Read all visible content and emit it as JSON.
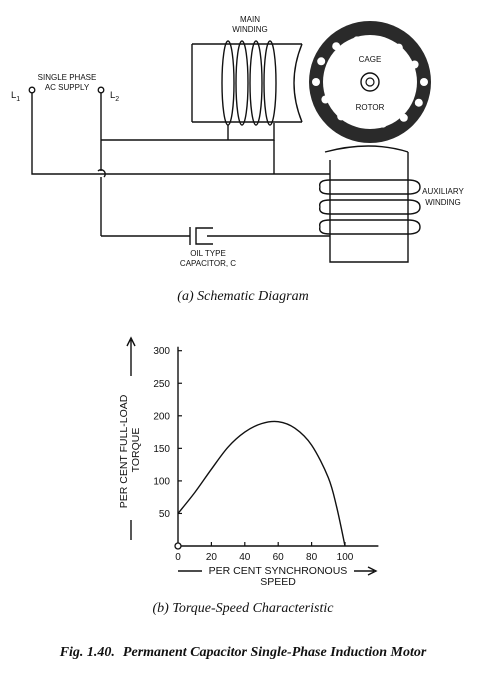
{
  "schematic": {
    "main_winding_line1": "MAIN",
    "main_winding_line2": "WINDING",
    "cage_label": "CAGE",
    "rotor_label": "ROTOR",
    "supply_line1": "SINGLE PHASE",
    "supply_line2": "AC SUPPLY",
    "l1_main": "L",
    "l1_sub": "1",
    "l2_main": "L",
    "l2_sub": "2",
    "aux_line1": "AUXILIARY",
    "aux_line2": "WINDING",
    "cap_line1": "OIL TYPE",
    "cap_line2": "CAPACITOR, C",
    "caption": "(a) Schematic Diagram"
  },
  "chart_data": {
    "type": "line",
    "title": "",
    "xlabel": "PER CENT SYNCHRONOUS SPEED",
    "ylabel": "PER CENT FULL-LOAD TORQUE",
    "xlim": [
      0,
      120
    ],
    "ylim": [
      0,
      300
    ],
    "x_ticks": [
      20,
      40,
      60,
      80,
      100
    ],
    "y_ticks": [
      50,
      100,
      150,
      200,
      250,
      300
    ],
    "origin_label": "0",
    "series": [
      {
        "x": [
          0,
          10,
          20,
          30,
          40,
          50,
          60,
          70,
          80,
          90,
          95,
          100
        ],
        "y": [
          50,
          82,
          118,
          152,
          175,
          188,
          191,
          181,
          155,
          105,
          60,
          0
        ]
      }
    ],
    "caption": "(b) Torque-Speed Characteristic"
  },
  "figure": {
    "number": "Fig. 1.40.",
    "title": "Permanent Capacitor Single-Phase Induction Motor"
  }
}
